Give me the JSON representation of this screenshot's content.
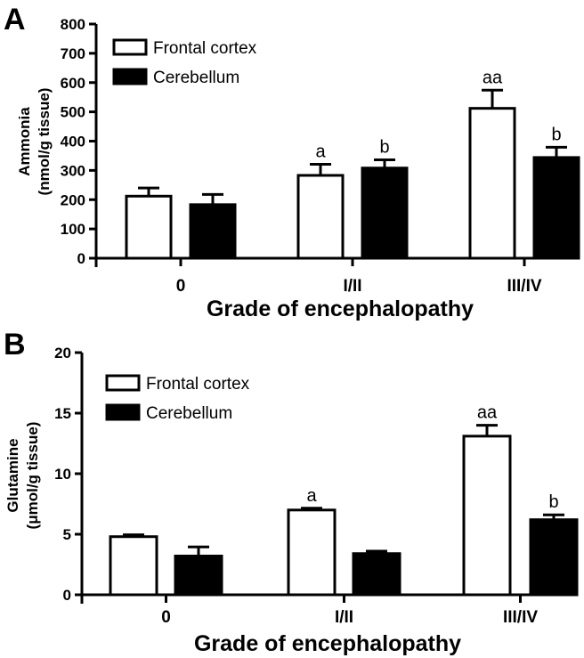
{
  "chart_data": [
    {
      "type": "bar",
      "panel_label": "A",
      "categories": [
        "0",
        "I/II",
        "III/IV"
      ],
      "series": [
        {
          "name": "Frontal cortex",
          "fill": "#ffffff",
          "values": [
            212,
            283,
            512
          ],
          "errors": [
            28,
            38,
            62
          ]
        },
        {
          "name": "Cerebellum",
          "fill": "#000000",
          "values": [
            183,
            308,
            344
          ],
          "errors": [
            35,
            28,
            35
          ]
        }
      ],
      "annotations": [
        {
          "series": 0,
          "category": 1,
          "text": "a"
        },
        {
          "series": 1,
          "category": 1,
          "text": "b"
        },
        {
          "series": 0,
          "category": 2,
          "text": "aa"
        },
        {
          "series": 1,
          "category": 2,
          "text": "b"
        }
      ],
      "ylabel": [
        "Ammonia",
        "(nmol/g tissue)"
      ],
      "xlabel": "Grade of encephalopathy",
      "ylim": [
        0,
        800
      ],
      "yticks": [
        0,
        100,
        200,
        300,
        400,
        500,
        600,
        700,
        800
      ],
      "legend_position": "top-left"
    },
    {
      "type": "bar",
      "panel_label": "B",
      "categories": [
        "0",
        "I/II",
        "III/IV"
      ],
      "series": [
        {
          "name": "Frontal cortex",
          "fill": "#ffffff",
          "values": [
            4.8,
            7.0,
            13.1
          ],
          "errors": [
            0.15,
            0.15,
            0.9
          ]
        },
        {
          "name": "Cerebellum",
          "fill": "#000000",
          "values": [
            3.2,
            3.4,
            6.2
          ],
          "errors": [
            0.75,
            0.2,
            0.4
          ]
        }
      ],
      "annotations": [
        {
          "series": 0,
          "category": 1,
          "text": "a"
        },
        {
          "series": 0,
          "category": 2,
          "text": "aa"
        },
        {
          "series": 1,
          "category": 2,
          "text": "b"
        }
      ],
      "ylabel": [
        "Glutamine",
        "(μmol/g tissue)"
      ],
      "xlabel": "Grade of encephalopathy",
      "ylim": [
        0,
        20
      ],
      "yticks": [
        0,
        5,
        10,
        15,
        20
      ],
      "legend_position": "top-left"
    }
  ]
}
